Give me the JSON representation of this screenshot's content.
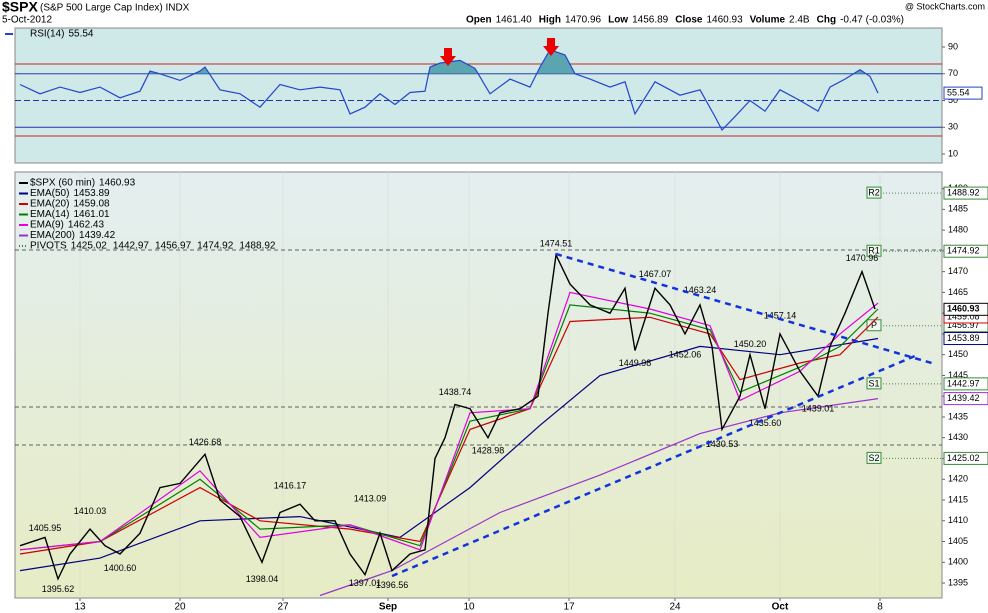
{
  "header": {
    "symbol": "$SPX",
    "name": "(S&P 500 Large Cap Index) INDX",
    "date": "5-Oct-2012",
    "brand": "@ StockCharts.com",
    "quote": [
      {
        "label": "Open",
        "value": "1461.40"
      },
      {
        "label": "High",
        "value": "1470.96"
      },
      {
        "label": "Low",
        "value": "1456.89"
      },
      {
        "label": "Close",
        "value": "1460.93"
      },
      {
        "label": "Volume",
        "value": "2.4B"
      },
      {
        "label": "Chg",
        "value": "-0.47 (-0.03%)"
      }
    ]
  },
  "chart_data": [
    {
      "type": "line",
      "title": "RSI(14)",
      "last": 55.54,
      "color": "#2244cc",
      "x": [
        0.25,
        1.25,
        2.25,
        3.25,
        4.25,
        5.25,
        6.25,
        6.75,
        7.25,
        8.25,
        9.25,
        9.5,
        10.25,
        11.25,
        12.25,
        13.25,
        14.25,
        15.25,
        16.25,
        16.75,
        17.5,
        18.25,
        19,
        19.75,
        20.5,
        20.75,
        21.25,
        22.25,
        23,
        23.75,
        24.75,
        25.75,
        26.25,
        26.75,
        27.5,
        28,
        28.75,
        29.75,
        30.5,
        31,
        32,
        33.25,
        34.25,
        35,
        35.35,
        36,
        36.75,
        37.5,
        38.25,
        39.25,
        40.15,
        40.75,
        41.5,
        42.25,
        42.75,
        43.15
      ],
      "values": [
        62,
        55,
        60,
        56,
        60,
        52,
        57,
        72,
        70,
        65,
        72,
        75,
        58,
        55,
        45,
        62,
        58,
        60,
        58,
        40,
        45,
        55,
        47,
        56,
        57,
        75,
        78,
        80,
        74,
        55,
        66,
        60,
        75,
        88,
        84,
        70,
        66,
        60,
        64,
        40,
        64,
        54,
        58,
        38,
        28,
        38,
        50,
        42,
        58,
        50,
        42,
        60,
        66,
        73,
        68,
        55.54
      ],
      "ylim": [
        3.3,
        104.2
      ],
      "yticks": [
        10,
        30,
        50,
        70,
        90
      ],
      "levels": [
        70,
        50,
        30
      ],
      "fill_color": "#5aa5b0"
    },
    {
      "type": "line",
      "title": "$SPX (60 min)",
      "last": 1460.93,
      "color": "#000000",
      "x": [
        0.25,
        1.5,
        2.15,
        2.75,
        3.75,
        4.5,
        5.25,
        6.25,
        7.25,
        8.25,
        9.5,
        10.25,
        11.25,
        12.35,
        13.25,
        14.25,
        15,
        16,
        16.75,
        17.5,
        18.25,
        18.85,
        19.75,
        20.5,
        21,
        21.5,
        22,
        22.75,
        23.65,
        24.25,
        25.25,
        26.15,
        26.65,
        27.05,
        27.75,
        28.75,
        29.75,
        30.5,
        31,
        32,
        32.75,
        33.5,
        34.25,
        34.85,
        35.35,
        36.25,
        36.75,
        37.5,
        38.25,
        39.25,
        40.15,
        40.75,
        41.5,
        42.35,
        43
      ],
      "values": [
        1404,
        1406,
        1396,
        1402,
        1408,
        1404,
        1402,
        1407,
        1418,
        1419,
        1426,
        1415,
        1411,
        1400,
        1412,
        1414,
        1410,
        1410,
        1402,
        1397,
        1407,
        1398,
        1402,
        1403,
        1425,
        1430,
        1438,
        1437,
        1430,
        1436,
        1437,
        1440,
        1460,
        1474,
        1467,
        1462,
        1460,
        1466,
        1451,
        1466,
        1462,
        1455,
        1462,
        1452,
        1432,
        1440,
        1450,
        1437,
        1455,
        1446,
        1440,
        1452,
        1460,
        1470,
        1461
      ],
      "xlim": [
        0,
        46.35
      ],
      "xticks": [
        {
          "value": 3.25,
          "label": "13"
        },
        {
          "value": 8.25,
          "label": "20"
        },
        {
          "value": 13.4,
          "label": "27"
        },
        {
          "value": 18.65,
          "label": "Sep"
        },
        {
          "value": 22.7,
          "label": "10"
        },
        {
          "value": 27.7,
          "label": "17"
        },
        {
          "value": 33,
          "label": "24"
        },
        {
          "value": 38.25,
          "label": "Oct"
        },
        {
          "value": 43.25,
          "label": "8"
        }
      ],
      "ylim": [
        1391.4,
        1494
      ],
      "yticks": [
        1395,
        1400,
        1405,
        1410,
        1415,
        1420,
        1425,
        1430,
        1435,
        1440,
        1445,
        1450,
        1455,
        1460,
        1465,
        1470,
        1475,
        1480,
        1485,
        1490
      ],
      "series": [
        {
          "name": "EMA(50)",
          "last": 1453.89,
          "color": "#000080",
          "x": [
            0.25,
            4.25,
            9.25,
            14.25,
            19.25,
            22.75,
            26.25,
            29.25,
            34.25,
            38.25,
            43.15
          ],
          "values": [
            1398,
            1401,
            1410,
            1411,
            1406,
            1418,
            1433,
            1445,
            1452,
            1450,
            1453.89
          ]
        },
        {
          "name": "EMA(20)",
          "last": 1459.08,
          "color": "#cc0000",
          "x": [
            0.25,
            4.25,
            9.25,
            12.25,
            16.75,
            20.25,
            22.75,
            25.75,
            27.75,
            31.75,
            34.75,
            36.25,
            39.25,
            41.25,
            43.15
          ],
          "values": [
            1402,
            1405,
            1418,
            1410,
            1408,
            1405,
            1432,
            1437,
            1458,
            1459,
            1455,
            1444,
            1448,
            1450,
            1459.08
          ]
        },
        {
          "name": "EMA(14)",
          "last": 1461.01,
          "color": "#008000",
          "x": [
            0.25,
            4.25,
            9.25,
            12.25,
            16.75,
            20.25,
            22.75,
            25.75,
            27.75,
            31.75,
            34.75,
            36.25,
            39.25,
            41.25,
            43.15
          ],
          "values": [
            1403,
            1405,
            1420,
            1408,
            1409,
            1404,
            1434,
            1437,
            1462,
            1460,
            1456,
            1441,
            1447,
            1452,
            1461.01
          ]
        },
        {
          "name": "EMA(9)",
          "last": 1462.43,
          "color": "#e000e0",
          "x": [
            0.25,
            4.25,
            9.25,
            12.25,
            16.75,
            20.25,
            22.75,
            25.75,
            27.75,
            31.75,
            34.75,
            36.25,
            39.25,
            41.25,
            43.15
          ],
          "values": [
            1403,
            1405,
            1422,
            1406,
            1409,
            1403,
            1436,
            1437,
            1465,
            1461,
            1457,
            1439,
            1446,
            1455,
            1462.43
          ]
        },
        {
          "name": "EMA(200)",
          "last": 1439.42,
          "color": "#9933cc",
          "x": [
            15.25,
            18.85,
            24.25,
            29.25,
            34.25,
            38.25,
            43.15
          ],
          "values": [
            1392,
            1398,
            1412,
            1421,
            1431,
            1436,
            1439.42
          ]
        }
      ],
      "pivots": {
        "name": "PIVOTS",
        "labels": [
          "S2",
          "S1",
          "P",
          "R1",
          "R2"
        ],
        "values": [
          1425.02,
          1442.97,
          1456.97,
          1474.92,
          1488.92
        ]
      },
      "high_labels": [
        {
          "x": 1.5,
          "value": 1405.95,
          "label": "1405.95"
        },
        {
          "x": 3.75,
          "value": 1410.03,
          "label": "1410.03"
        },
        {
          "x": 9.5,
          "value": 1426.68,
          "label": "1426.68"
        },
        {
          "x": 13.75,
          "value": 1416.17,
          "label": "1416.17"
        },
        {
          "x": 17.75,
          "value": 1413.09,
          "label": "1413.09"
        },
        {
          "x": 22,
          "value": 1438.74,
          "label": "1438.74"
        },
        {
          "x": 27.05,
          "value": 1474.51,
          "label": "1474.51"
        },
        {
          "x": 32,
          "value": 1467.07,
          "label": "1467.07"
        },
        {
          "x": 34.25,
          "value": 1463.24,
          "label": "1463.24"
        },
        {
          "x": 36.75,
          "value": 1450.2,
          "label": "1450.20"
        },
        {
          "x": 38.25,
          "value": 1457.14,
          "label": "1457.14"
        },
        {
          "x": 42.35,
          "value": 1470.96,
          "label": "1470.96"
        }
      ],
      "low_labels": [
        {
          "x": 2.15,
          "value": 1395.62,
          "label": "1395.62"
        },
        {
          "x": 5.25,
          "value": 1400.6,
          "label": "1400.60"
        },
        {
          "x": 12.35,
          "value": 1398.04,
          "label": "1398.04"
        },
        {
          "x": 17.5,
          "value": 1397.01,
          "label": "1397.01"
        },
        {
          "x": 18.85,
          "value": 1396.56,
          "label": "1396.56"
        },
        {
          "x": 23.65,
          "value": 1428.98,
          "label": "1428.98"
        },
        {
          "x": 31,
          "value": 1449.98,
          "label": "1449.98"
        },
        {
          "x": 33.5,
          "value": 1452.06,
          "label": "1452.06"
        },
        {
          "x": 35.35,
          "value": 1430.53,
          "label": "1430.53"
        },
        {
          "x": 37.5,
          "value": 1435.6,
          "label": "1435.60"
        },
        {
          "x": 40.15,
          "value": 1439.01,
          "label": "1439.01"
        }
      ]
    }
  ]
}
